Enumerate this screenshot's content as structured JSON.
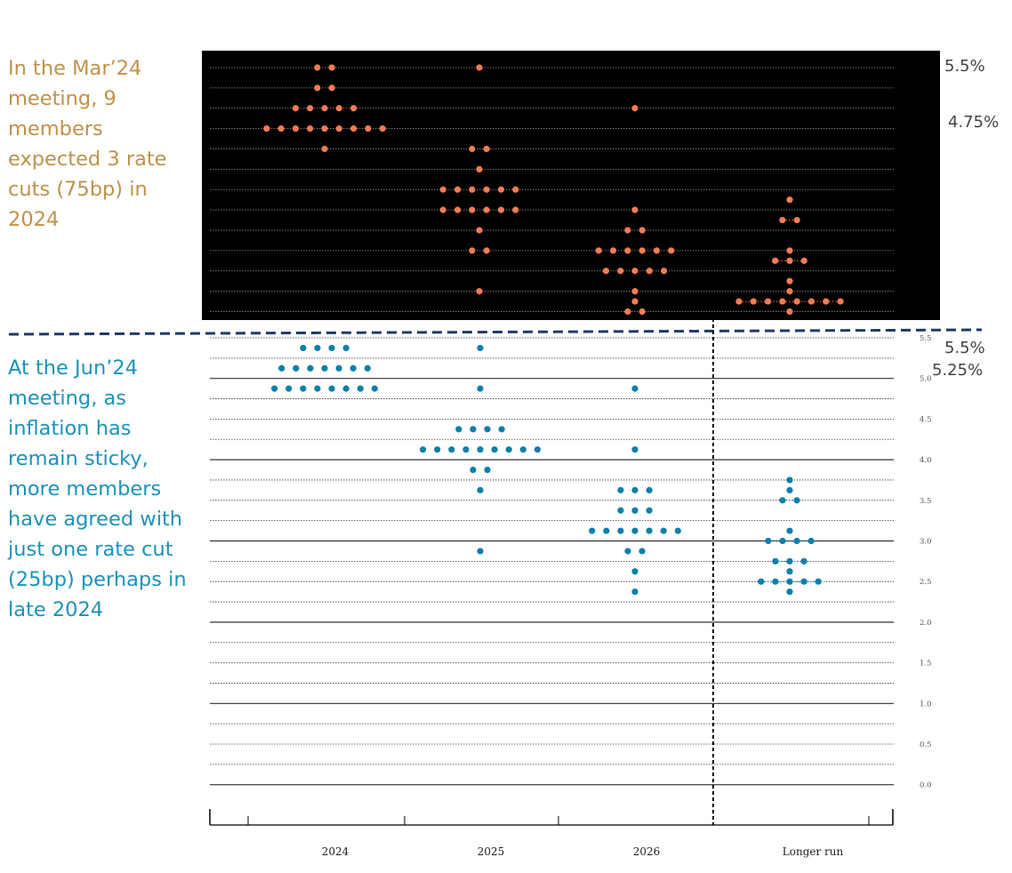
{
  "annotations": {
    "mar_note": "In the Mar’24 meeting, 9 members expected 3 rate cuts (75bp) in 2024",
    "jun_note": "At the Jun’24 meeting, as inflation has remain sticky, more members have agreed with just one rate cut (25bp) perhaps in late 2024",
    "mar_high": "5.5%",
    "mar_median": "4.75%",
    "jun_high": "5.5%",
    "jun_median": "5.25%"
  },
  "colors": {
    "mar_note_text": "#C0914A",
    "jun_note_text": "#1A93B8",
    "mar_dot": "#F47C54",
    "jun_dot": "#0B7FAB",
    "mar_panel_bg": "#000000",
    "separator": "#1F3A66"
  },
  "chart_data": [
    {
      "type": "scatter",
      "title": "",
      "background": "black",
      "categories": [
        "2024",
        "2025",
        "2026",
        "Longer run"
      ],
      "ylim": [
        2.375,
        5.625
      ],
      "yticks": [
        "5.5",
        "5.0",
        "4.5",
        "4.0",
        "3.5",
        "3.0",
        "2.5"
      ],
      "grid": true,
      "dots": {
        "2024": [
          {
            "y": 5.375,
            "n": 2
          },
          {
            "y": 5.125,
            "n": 2
          },
          {
            "y": 4.875,
            "n": 5
          },
          {
            "y": 4.625,
            "n": 9
          },
          {
            "y": 4.375,
            "n": 1
          }
        ],
        "2025": [
          {
            "y": 5.375,
            "n": 1
          },
          {
            "y": 4.375,
            "n": 2
          },
          {
            "y": 4.125,
            "n": 1
          },
          {
            "y": 3.875,
            "n": 6
          },
          {
            "y": 3.625,
            "n": 6
          },
          {
            "y": 3.375,
            "n": 1
          },
          {
            "y": 3.125,
            "n": 2
          },
          {
            "y": 2.625,
            "n": 1
          }
        ],
        "2026": [
          {
            "y": 4.875,
            "n": 1
          },
          {
            "y": 3.625,
            "n": 1
          },
          {
            "y": 3.375,
            "n": 2
          },
          {
            "y": 3.125,
            "n": 6
          },
          {
            "y": 2.875,
            "n": 5
          },
          {
            "y": 2.625,
            "n": 1
          },
          {
            "y": 2.5,
            "n": 1
          },
          {
            "y": 2.375,
            "n": 2
          }
        ],
        "Longer run": [
          {
            "y": 3.75,
            "n": 1
          },
          {
            "y": 3.5,
            "n": 2
          },
          {
            "y": 3.125,
            "n": 1
          },
          {
            "y": 3.0,
            "n": 3
          },
          {
            "y": 2.75,
            "n": 1
          },
          {
            "y": 2.625,
            "n": 1
          },
          {
            "y": 2.5,
            "n": 8
          },
          {
            "y": 2.375,
            "n": 1
          }
        ]
      }
    },
    {
      "type": "scatter",
      "title": "",
      "background": "white",
      "categories": [
        "2024",
        "2025",
        "2026",
        "Longer run"
      ],
      "xlabels": [
        "2024",
        "2025",
        "2026",
        "Longer run"
      ],
      "ylim": [
        0.0,
        5.5
      ],
      "yticks": [
        "5.5",
        "5.0",
        "4.5",
        "4.0",
        "3.5",
        "3.0",
        "2.5",
        "2.0",
        "1.5",
        "1.0",
        "0.5",
        "0.0"
      ],
      "grid": true,
      "dots": {
        "2024": [
          {
            "y": 5.375,
            "n": 4
          },
          {
            "y": 5.125,
            "n": 7
          },
          {
            "y": 4.875,
            "n": 8
          }
        ],
        "2025": [
          {
            "y": 5.375,
            "n": 1
          },
          {
            "y": 4.875,
            "n": 1
          },
          {
            "y": 4.375,
            "n": 4
          },
          {
            "y": 4.125,
            "n": 9
          },
          {
            "y": 3.875,
            "n": 2
          },
          {
            "y": 3.625,
            "n": 1
          },
          {
            "y": 2.875,
            "n": 1
          }
        ],
        "2026": [
          {
            "y": 4.875,
            "n": 1
          },
          {
            "y": 4.125,
            "n": 1
          },
          {
            "y": 3.625,
            "n": 3
          },
          {
            "y": 3.375,
            "n": 3
          },
          {
            "y": 3.125,
            "n": 7
          },
          {
            "y": 2.875,
            "n": 2
          },
          {
            "y": 2.625,
            "n": 1
          },
          {
            "y": 2.375,
            "n": 1
          }
        ],
        "Longer run": [
          {
            "y": 3.75,
            "n": 1
          },
          {
            "y": 3.625,
            "n": 1
          },
          {
            "y": 3.5,
            "n": 2
          },
          {
            "y": 3.125,
            "n": 1
          },
          {
            "y": 3.0,
            "n": 4
          },
          {
            "y": 2.75,
            "n": 3
          },
          {
            "y": 2.625,
            "n": 1
          },
          {
            "y": 2.5,
            "n": 5
          },
          {
            "y": 2.375,
            "n": 1
          }
        ]
      }
    }
  ]
}
